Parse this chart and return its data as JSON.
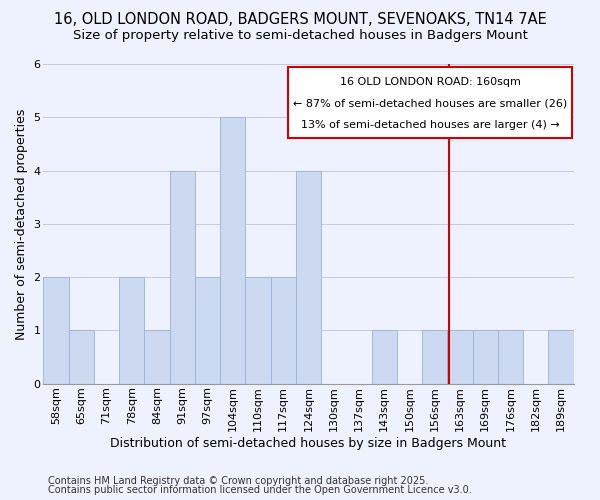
{
  "title1": "16, OLD LONDON ROAD, BADGERS MOUNT, SEVENOAKS, TN14 7AE",
  "title2": "Size of property relative to semi-detached houses in Badgers Mount",
  "xlabel": "Distribution of semi-detached houses by size in Badgers Mount",
  "ylabel": "Number of semi-detached properties",
  "categories": [
    "58sqm",
    "65sqm",
    "71sqm",
    "78sqm",
    "84sqm",
    "91sqm",
    "97sqm",
    "104sqm",
    "110sqm",
    "117sqm",
    "124sqm",
    "130sqm",
    "137sqm",
    "143sqm",
    "150sqm",
    "156sqm",
    "163sqm",
    "169sqm",
    "176sqm",
    "182sqm",
    "189sqm"
  ],
  "values": [
    2,
    1,
    0,
    2,
    1,
    4,
    2,
    5,
    2,
    2,
    4,
    0,
    0,
    1,
    0,
    1,
    1,
    1,
    1,
    0,
    1
  ],
  "bar_color": "#ccd9f0",
  "bar_edgecolor": "#99b3d9",
  "grid_color": "#c8c8d8",
  "redline_label": "16 OLD LONDON ROAD: 160sqm",
  "redline_pct_smaller": "← 87% of semi-detached houses are smaller (26)",
  "redline_pct_larger": "13% of semi-detached houses are larger (4) →",
  "annotation_box_color": "#ffffff",
  "annotation_border_color": "#cc0000",
  "redline_color": "#cc0000",
  "ylim": [
    0,
    6
  ],
  "yticks": [
    0,
    1,
    2,
    3,
    4,
    5,
    6
  ],
  "footnote1": "Contains HM Land Registry data © Crown copyright and database right 2025.",
  "footnote2": "Contains public sector information licensed under the Open Government Licence v3.0.",
  "bg_color": "#eef2ff",
  "title1_fontsize": 10.5,
  "title2_fontsize": 9.5,
  "tick_fontsize": 8,
  "ylabel_fontsize": 9,
  "xlabel_fontsize": 9,
  "footnote_fontsize": 7,
  "annot_fontsize": 8
}
